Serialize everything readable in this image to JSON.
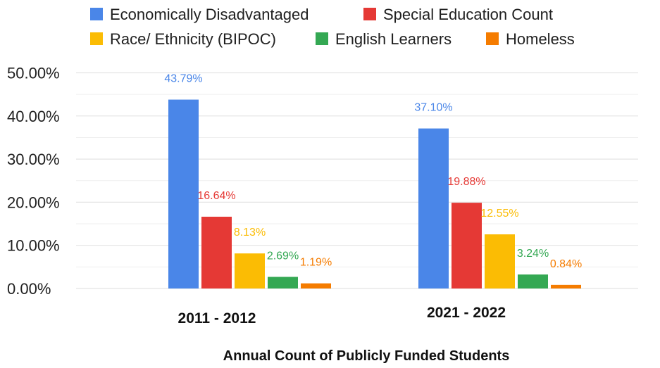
{
  "chart_data": {
    "type": "bar",
    "title": "",
    "xlabel": "Annual Count of Publicly Funded Students",
    "ylabel": "",
    "categories": [
      "2011 - 2012",
      "2021 - 2022"
    ],
    "ylim": [
      0,
      50
    ],
    "yticks": [
      {
        "value": 0,
        "label": "0.00%"
      },
      {
        "value": 10,
        "label": "10.00%"
      },
      {
        "value": 20,
        "label": "20.00%"
      },
      {
        "value": 30,
        "label": "30.00%"
      },
      {
        "value": 40,
        "label": "40.00%"
      },
      {
        "value": 50,
        "label": "50.00%"
      }
    ],
    "gridlines": true,
    "legend_position": "top",
    "series": [
      {
        "name": "Economically Disadvantaged",
        "color": "#4a86e8",
        "values": [
          43.79,
          37.1
        ],
        "labels": [
          "43.79%",
          "37.10%"
        ]
      },
      {
        "name": "Special Education Count",
        "color": "#e53935",
        "values": [
          16.64,
          19.88
        ],
        "labels": [
          "16.64%",
          "19.88%"
        ]
      },
      {
        "name": "Race/ Ethnicity (BIPOC)",
        "color": "#fbbc04",
        "values": [
          8.13,
          12.55
        ],
        "labels": [
          "8.13%",
          "12.55%"
        ]
      },
      {
        "name": "English Learners",
        "color": "#34a853",
        "values": [
          2.69,
          3.24
        ],
        "labels": [
          "2.69%",
          "3.24%"
        ]
      },
      {
        "name": "Homeless",
        "color": "#f57c00",
        "values": [
          1.19,
          0.84
        ],
        "labels": [
          "1.19%",
          "0.84%"
        ]
      }
    ]
  }
}
